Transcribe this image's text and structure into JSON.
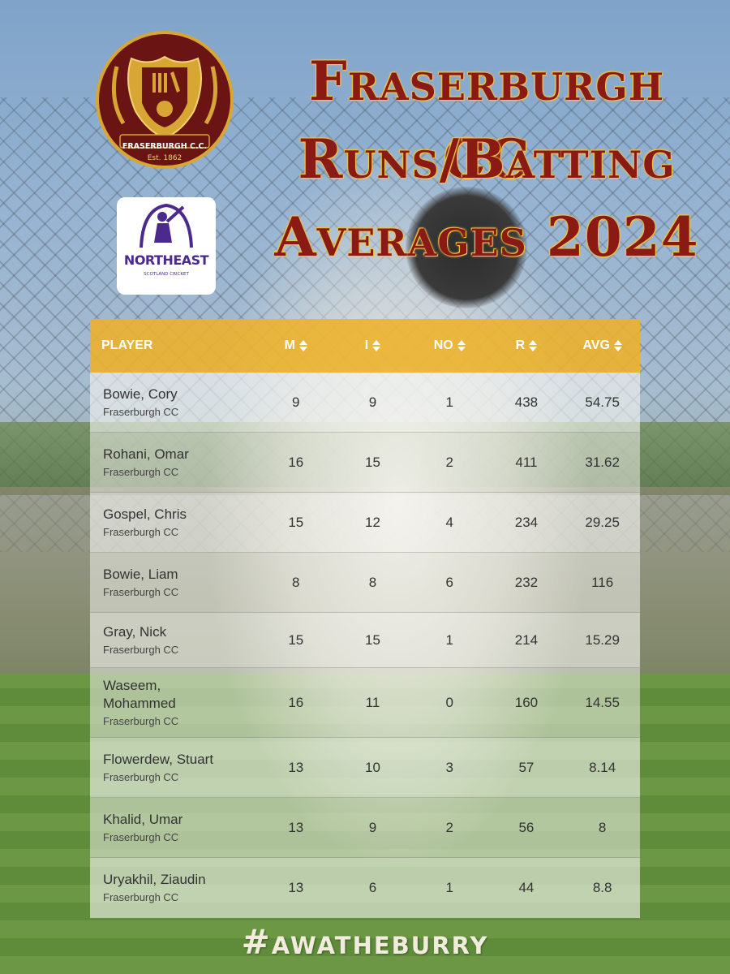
{
  "title": {
    "line1": "Fraserburgh CC",
    "line2": "Runs/Batting",
    "line3": "Averages 2024"
  },
  "club_logo": {
    "name": "FRASERBURGH C.C.",
    "est": "Est. 1862",
    "colors": {
      "primary": "#6b1414",
      "accent": "#d8a632"
    }
  },
  "league_logo": {
    "name": "NORTHEAST",
    "subtitle": "SCOTLAND CRICKET",
    "color": "#4a2a8c"
  },
  "table": {
    "headers": {
      "player": "PLAYER",
      "m": "M",
      "i": "I",
      "no": "NO",
      "r": "R",
      "avg": "AVG"
    },
    "header_color": "#eeb228",
    "rows": [
      {
        "name": "Bowie, Cory",
        "club": "Fraserburgh CC",
        "m": "9",
        "i": "9",
        "no": "1",
        "r": "438",
        "avg": "54.75"
      },
      {
        "name": "Rohani, Omar",
        "club": "Fraserburgh CC",
        "m": "16",
        "i": "15",
        "no": "2",
        "r": "411",
        "avg": "31.62"
      },
      {
        "name": "Gospel, Chris",
        "club": "Fraserburgh CC",
        "m": "15",
        "i": "12",
        "no": "4",
        "r": "234",
        "avg": "29.25"
      },
      {
        "name": "Bowie, Liam",
        "club": "Fraserburgh CC",
        "m": "8",
        "i": "8",
        "no": "6",
        "r": "232",
        "avg": "116"
      },
      {
        "name": "Gray, Nick",
        "club": "Fraserburgh CC",
        "m": "15",
        "i": "15",
        "no": "1",
        "r": "214",
        "avg": "15.29"
      },
      {
        "name": "Waseem, Mohammed",
        "club": "Fraserburgh CC",
        "m": "16",
        "i": "11",
        "no": "0",
        "r": "160",
        "avg": "14.55"
      },
      {
        "name": "Flowerdew, Stuart",
        "club": "Fraserburgh CC",
        "m": "13",
        "i": "10",
        "no": "3",
        "r": "57",
        "avg": "8.14"
      },
      {
        "name": "Khalid, Umar",
        "club": "Fraserburgh CC",
        "m": "13",
        "i": "9",
        "no": "2",
        "r": "56",
        "avg": "8"
      },
      {
        "name": "Uryakhil, Ziaudin",
        "club": "Fraserburgh CC",
        "m": "13",
        "i": "6",
        "no": "1",
        "r": "44",
        "avg": "8.8"
      }
    ]
  },
  "hashtag": "#awatheburry"
}
